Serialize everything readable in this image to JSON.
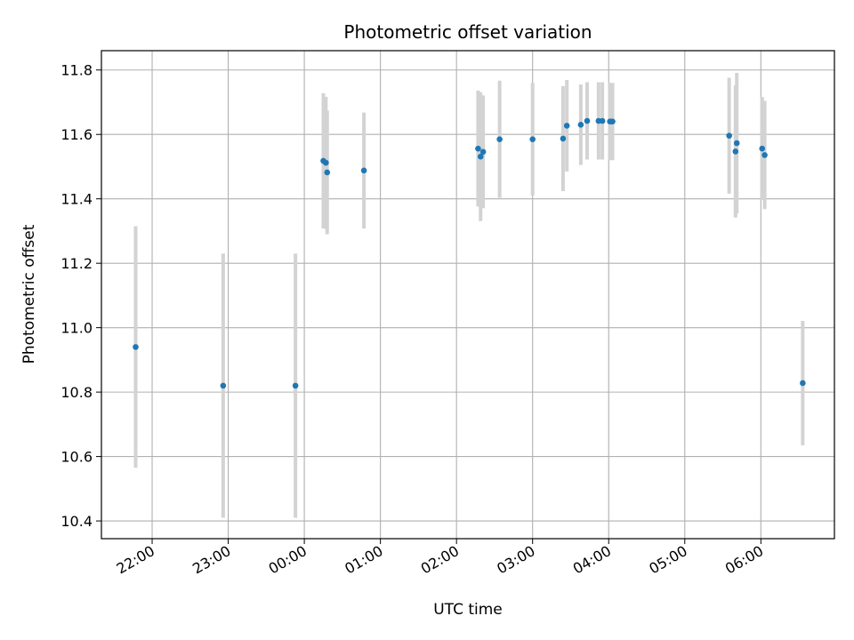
{
  "chart_data": {
    "type": "scatter",
    "title": "Photometric offset variation",
    "xlabel": "UTC time",
    "ylabel": "Photometric offset",
    "x_axis_type": "time",
    "xlim": [
      "21:20",
      "06:58"
    ],
    "ylim": [
      10.345,
      11.86
    ],
    "grid": true,
    "colors": {
      "point": "#1f77b4",
      "errorbar": "#d3d3d3",
      "grid": "#b0b0b0"
    },
    "x_ticks": [
      "22:00",
      "23:00",
      "00:00",
      "01:00",
      "02:00",
      "03:00",
      "04:00",
      "05:00",
      "06:00"
    ],
    "y_ticks": [
      "10.4",
      "10.6",
      "10.8",
      "11.0",
      "11.2",
      "11.4",
      "11.6",
      "11.8"
    ],
    "points": [
      {
        "t": "21:47",
        "y": 10.94,
        "err": 0.375
      },
      {
        "t": "22:56",
        "y": 10.82,
        "err": 0.41
      },
      {
        "t": "23:53",
        "y": 10.82,
        "err": 0.41
      },
      {
        "t": "00:15",
        "y": 11.518,
        "err": 0.21
      },
      {
        "t": "00:17",
        "y": 11.512,
        "err": 0.205
      },
      {
        "t": "00:18",
        "y": 11.482,
        "err": 0.192
      },
      {
        "t": "00:47",
        "y": 11.488,
        "err": 0.18
      },
      {
        "t": "02:17",
        "y": 11.556,
        "err": 0.18
      },
      {
        "t": "02:19",
        "y": 11.531,
        "err": 0.2
      },
      {
        "t": "02:21",
        "y": 11.546,
        "err": 0.175
      },
      {
        "t": "02:34",
        "y": 11.585,
        "err": 0.182
      },
      {
        "t": "03:00",
        "y": 11.585,
        "err": 0.175
      },
      {
        "t": "03:24",
        "y": 11.587,
        "err": 0.163
      },
      {
        "t": "03:27",
        "y": 11.627,
        "err": 0.142
      },
      {
        "t": "03:38",
        "y": 11.63,
        "err": 0.125
      },
      {
        "t": "03:43",
        "y": 11.642,
        "err": 0.12
      },
      {
        "t": "03:52",
        "y": 11.642,
        "err": 0.12
      },
      {
        "t": "03:55",
        "y": 11.642,
        "err": 0.12
      },
      {
        "t": "04:01",
        "y": 11.64,
        "err": 0.12
      },
      {
        "t": "04:03",
        "y": 11.64,
        "err": 0.12
      },
      {
        "t": "05:35",
        "y": 11.596,
        "err": 0.18
      },
      {
        "t": "05:40",
        "y": 11.547,
        "err": 0.205
      },
      {
        "t": "05:41",
        "y": 11.573,
        "err": 0.218
      },
      {
        "t": "06:01",
        "y": 11.556,
        "err": 0.16
      },
      {
        "t": "06:03",
        "y": 11.536,
        "err": 0.168
      },
      {
        "t": "06:33",
        "y": 10.828,
        "err": 0.193
      }
    ]
  }
}
